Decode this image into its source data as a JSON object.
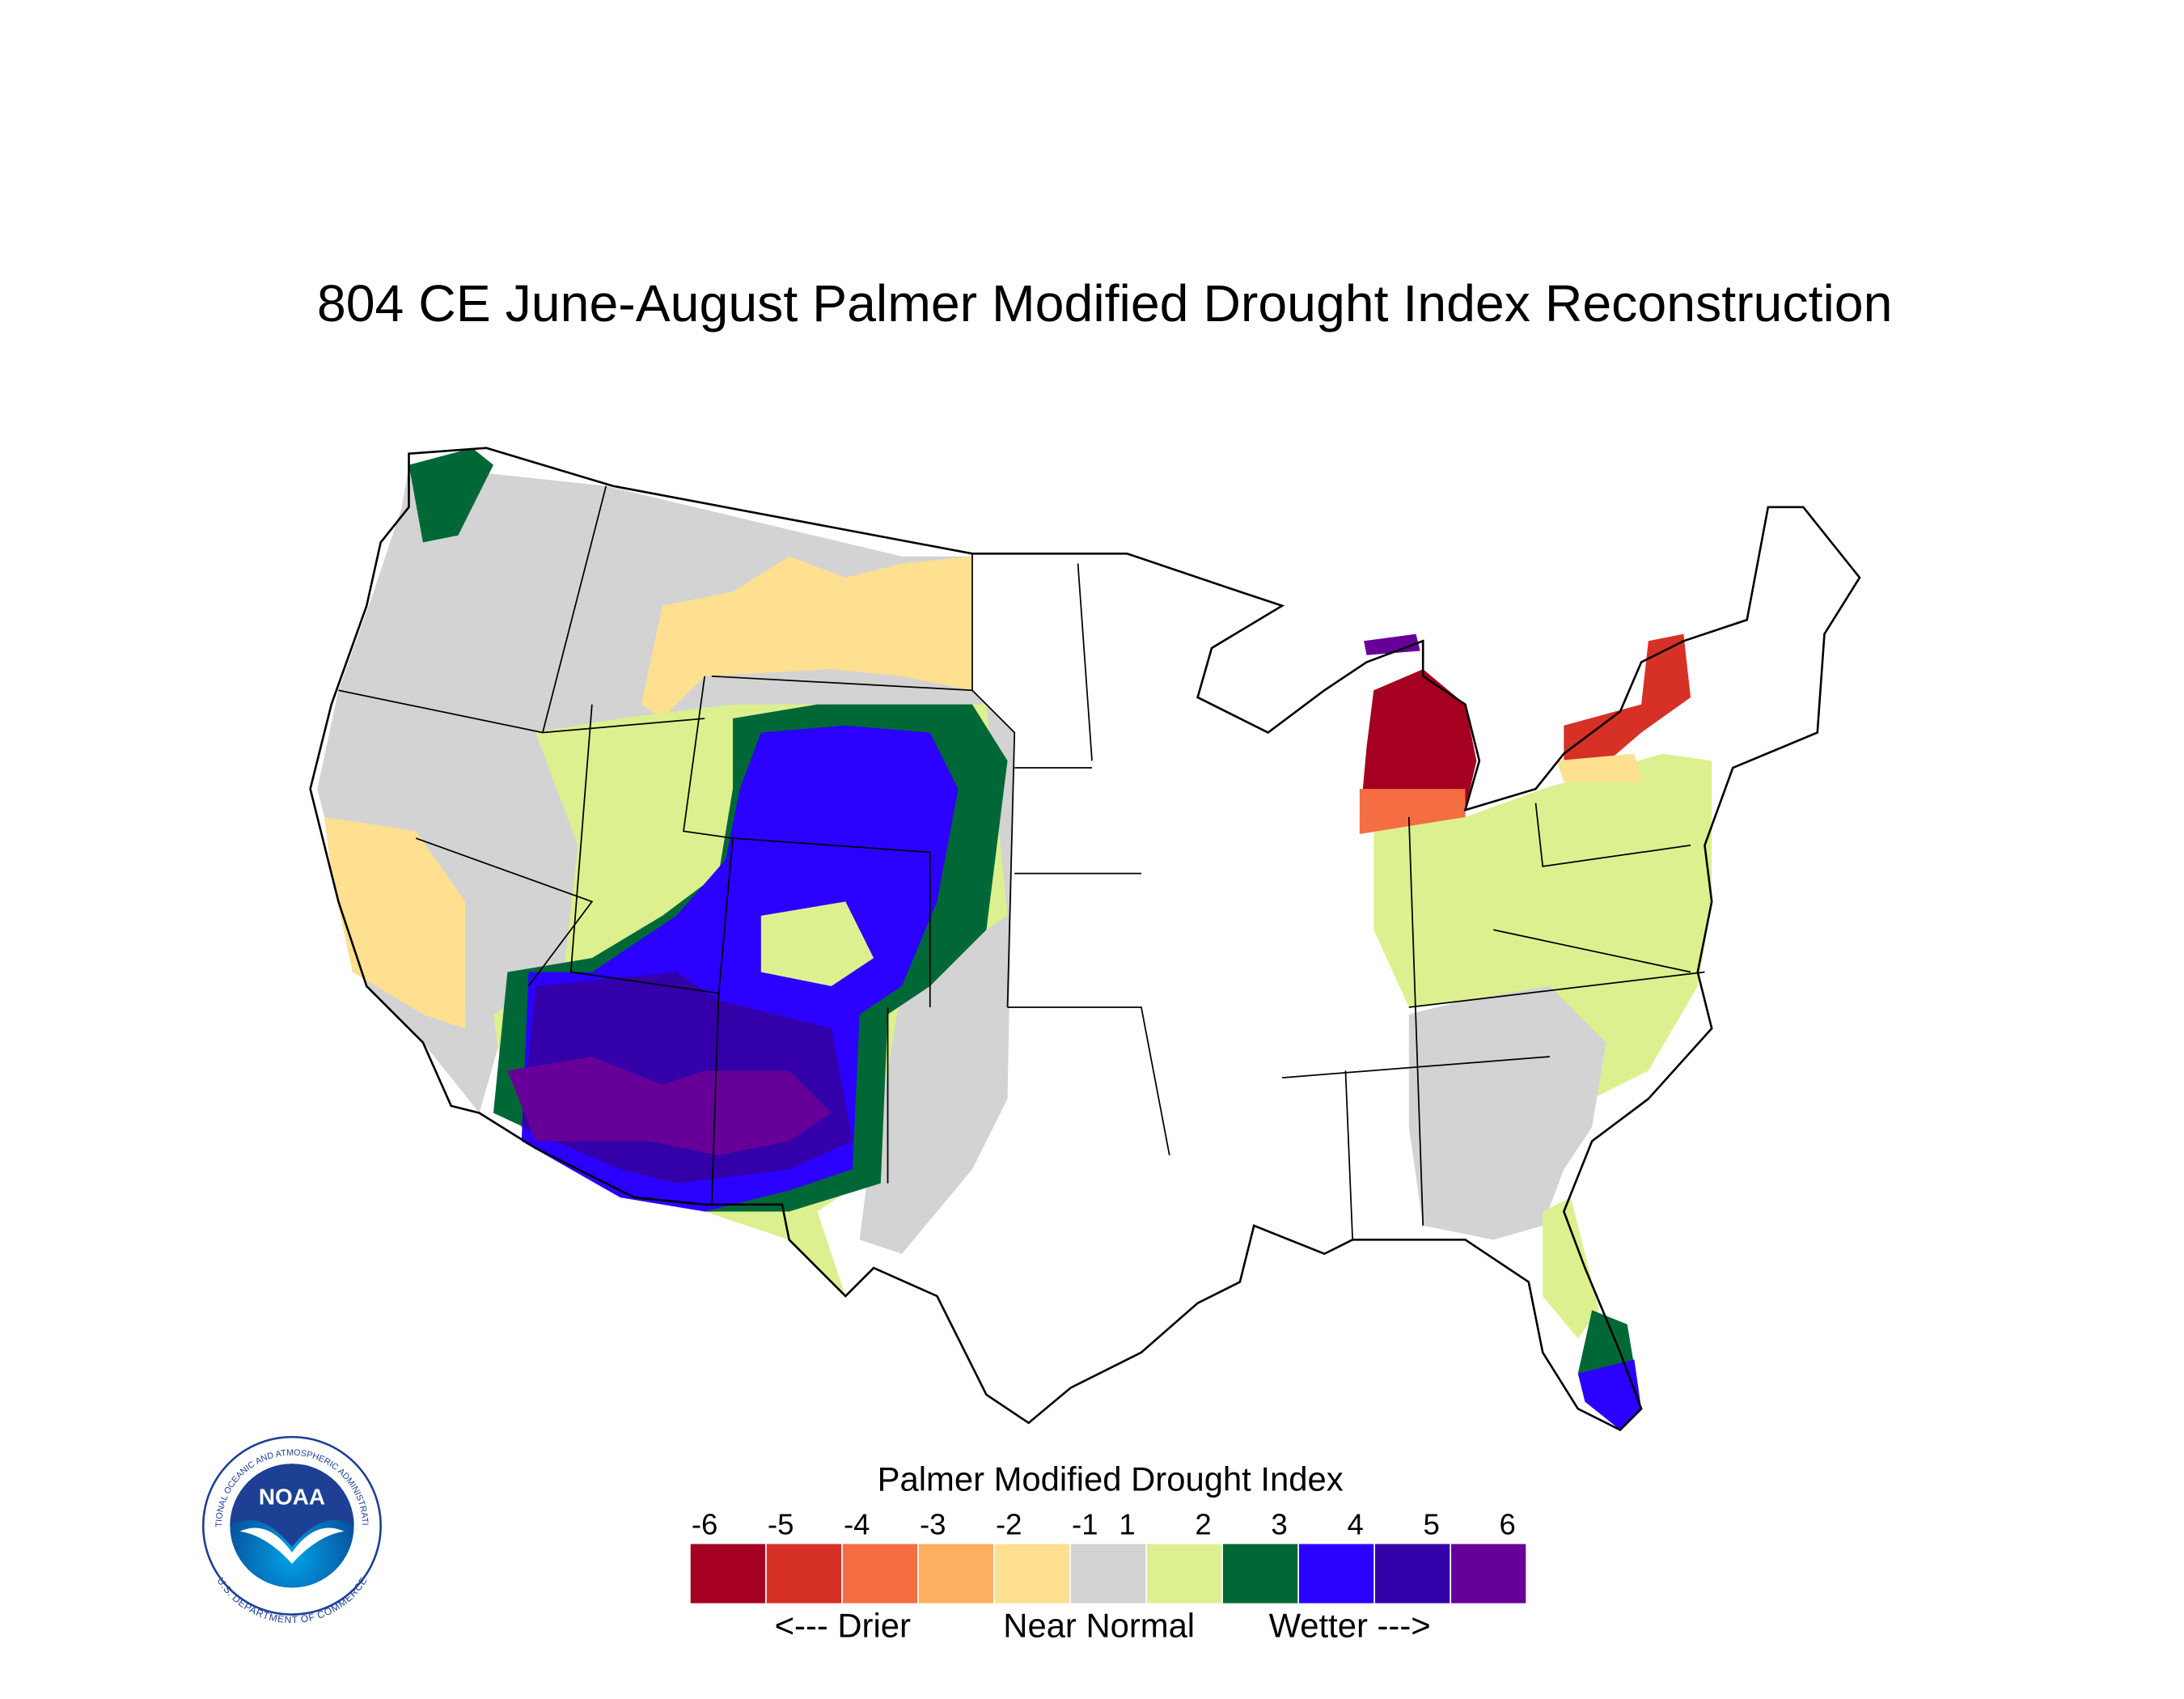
{
  "title": "804 CE  June-August  Palmer Modified Drought Index Reconstruction",
  "legend": {
    "title": "Palmer Modified Drought Index",
    "labels": [
      -6,
      -5,
      -4,
      -3,
      -2,
      -1,
      1,
      2,
      3,
      4,
      5,
      6
    ],
    "colors": [
      "#a50021",
      "#d73027",
      "#f46d43",
      "#fdae61",
      "#fee090",
      "#d3d3d3",
      "#dcf08f",
      "#006837",
      "#2b00ff",
      "#3300aa",
      "#660099"
    ],
    "captions": [
      "<--- Drier",
      "Near Normal",
      "Wetter --->"
    ]
  },
  "logo": {
    "name": "NOAA",
    "ring_top": "NATIONAL OCEANIC AND ATMOSPHERIC ADMINISTRATION",
    "ring_bottom": "U.S. DEPARTMENT OF COMMERCE"
  }
}
